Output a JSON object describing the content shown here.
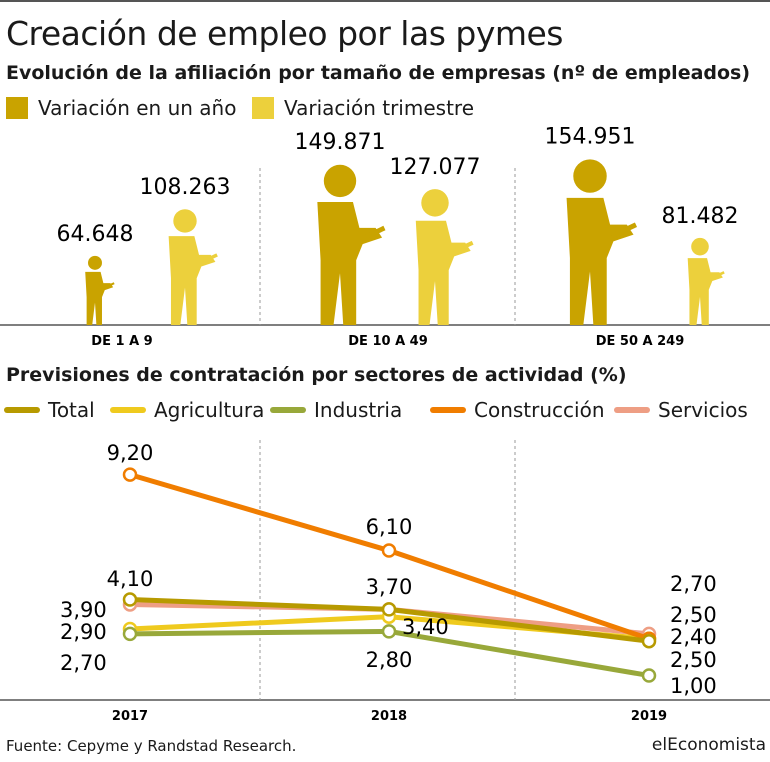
{
  "title": "Creación de empleo por las pymes",
  "source": "Fuente: Cepyme y Randstad Research.",
  "brand": "elEconomista",
  "chart_data": [
    {
      "type": "bar",
      "title": "Evolución de la afiliación por tamaño de empresas (nº de empleados)",
      "categories": [
        "DE 1 A 9",
        "DE 10 A 49",
        "DE 50 A 249"
      ],
      "series": [
        {
          "name": "Variación en un año",
          "color": "#C9A300",
          "values": [
            64648,
            149871,
            154951
          ],
          "labels": [
            "64.648",
            "149.871",
            "154.951"
          ]
        },
        {
          "name": "Variación trimestre",
          "color": "#ECD03C",
          "values": [
            108263,
            127077,
            81482
          ],
          "labels": [
            "108.263",
            "127.077",
            "81.482"
          ]
        }
      ],
      "mark": "person-pictogram"
    },
    {
      "type": "line",
      "title": "Previsiones de contratación por sectores de actividad (%)",
      "categories": [
        "2017",
        "2018",
        "2019"
      ],
      "series": [
        {
          "name": "Total",
          "color": "#B79A00",
          "values": [
            4.1,
            3.7,
            2.4
          ],
          "labels": [
            "4,10",
            "3,70",
            "2,40"
          ]
        },
        {
          "name": "Agricultura",
          "color": "#EFCA1E",
          "values": [
            2.9,
            3.4,
            2.5
          ],
          "labels": [
            "2,90",
            "3,40",
            "2,50"
          ]
        },
        {
          "name": "Industria",
          "color": "#98A83A",
          "values": [
            2.7,
            2.8,
            1.0
          ],
          "labels": [
            "2,70",
            "2,80",
            "1,00"
          ]
        },
        {
          "name": "Construcción",
          "color": "#F07D00",
          "values": [
            9.2,
            6.1,
            2.5
          ],
          "labels": [
            "9,20",
            "6,10",
            "2,50"
          ]
        },
        {
          "name": "Servicios",
          "color": "#EE9E84",
          "values": [
            3.9,
            3.7,
            2.7
          ],
          "labels": [
            "3,90",
            "",
            "2,70"
          ]
        }
      ]
    }
  ]
}
